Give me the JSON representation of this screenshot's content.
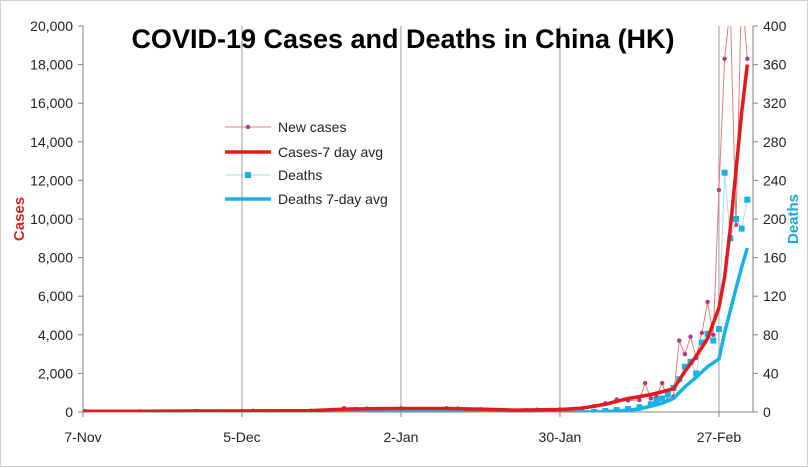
{
  "chart_data": {
    "type": "line",
    "title": "COVID-19 Cases and Deaths in China (HK)",
    "ylabel": "Cases",
    "y2label": "Deaths",
    "ylim": [
      0,
      20000
    ],
    "y2lim": [
      0,
      400
    ],
    "yticks": [
      "0",
      "2,000",
      "4,000",
      "6,000",
      "8,000",
      "10,000",
      "12,000",
      "14,000",
      "16,000",
      "18,000",
      "20,000"
    ],
    "y2ticks": [
      "0",
      "40",
      "80",
      "120",
      "160",
      "200",
      "240",
      "280",
      "320",
      "360",
      "400"
    ],
    "xticks": [
      "7-Nov",
      "5-Dec",
      "2-Jan",
      "30-Jan",
      "27-Feb"
    ],
    "xtick_days": [
      0,
      28,
      56,
      84,
      112
    ],
    "x_range_days": [
      0,
      118
    ],
    "grid": "vertical",
    "legend_position": "center-left",
    "colors": {
      "new_cases": "#b03a7a",
      "cases_avg": "#e31a1c",
      "deaths": "#19b2e8",
      "deaths_avg": "#19b2e8",
      "grid": "#9a9a9a",
      "text": "#222222",
      "cases_axis_title": "#e02020",
      "deaths_axis_title": "#19a9e0"
    },
    "series": [
      {
        "name": "New cases",
        "axis": "left",
        "style": "thin-line-markers",
        "x": [
          0,
          10,
          20,
          30,
          40,
          46,
          48,
          50,
          52,
          56,
          60,
          64,
          66,
          70,
          74,
          78,
          80,
          84,
          88,
          90,
          92,
          94,
          96,
          98,
          99,
          100,
          101,
          102,
          103,
          104,
          105,
          106,
          107,
          108,
          109,
          110,
          111,
          112,
          113,
          114,
          115,
          116,
          117
        ],
        "y": [
          40,
          30,
          45,
          60,
          70,
          200,
          150,
          180,
          160,
          190,
          150,
          200,
          180,
          140,
          80,
          100,
          120,
          140,
          200,
          300,
          450,
          650,
          600,
          620,
          1500,
          700,
          800,
          1500,
          600,
          800,
          3700,
          3000,
          3900,
          2800,
          4100,
          5700,
          4000,
          11500,
          18300,
          21000,
          9700,
          22000,
          18300
        ]
      },
      {
        "name": "Cases-7 day avg",
        "axis": "left",
        "style": "thick-line",
        "x": [
          0,
          10,
          20,
          30,
          40,
          46,
          50,
          56,
          64,
          70,
          76,
          80,
          84,
          88,
          92,
          96,
          100,
          104,
          106,
          108,
          110,
          111,
          112,
          113,
          114,
          115,
          116,
          117
        ],
        "y": [
          40,
          40,
          50,
          60,
          70,
          150,
          170,
          180,
          180,
          150,
          100,
          110,
          130,
          200,
          400,
          700,
          900,
          1200,
          2100,
          2900,
          3800,
          4600,
          5400,
          7000,
          9500,
          12500,
          15500,
          18000
        ]
      },
      {
        "name": "Deaths",
        "axis": "right",
        "style": "markers",
        "x": [
          0,
          20,
          40,
          60,
          80,
          90,
          92,
          94,
          96,
          98,
          100,
          101,
          102,
          103,
          104,
          105,
          106,
          107,
          108,
          109,
          110,
          111,
          112,
          113,
          114,
          115,
          116,
          117
        ],
        "y": [
          0,
          0,
          0,
          0,
          0,
          0,
          1,
          2,
          3,
          5,
          8,
          12,
          14,
          18,
          25,
          34,
          47,
          52,
          40,
          72,
          81,
          74,
          86,
          248,
          180,
          200,
          190,
          220
        ]
      },
      {
        "name": "Deaths 7-day avg",
        "axis": "right",
        "style": "thick-line",
        "x": [
          0,
          20,
          40,
          60,
          80,
          90,
          94,
          98,
          100,
          102,
          104,
          106,
          108,
          110,
          112,
          113,
          114,
          115,
          116,
          117
        ],
        "y": [
          0,
          0,
          0,
          0,
          0,
          0,
          1,
          3,
          6,
          9,
          14,
          26,
          36,
          47,
          55,
          82,
          105,
          128,
          150,
          170
        ]
      }
    ]
  }
}
